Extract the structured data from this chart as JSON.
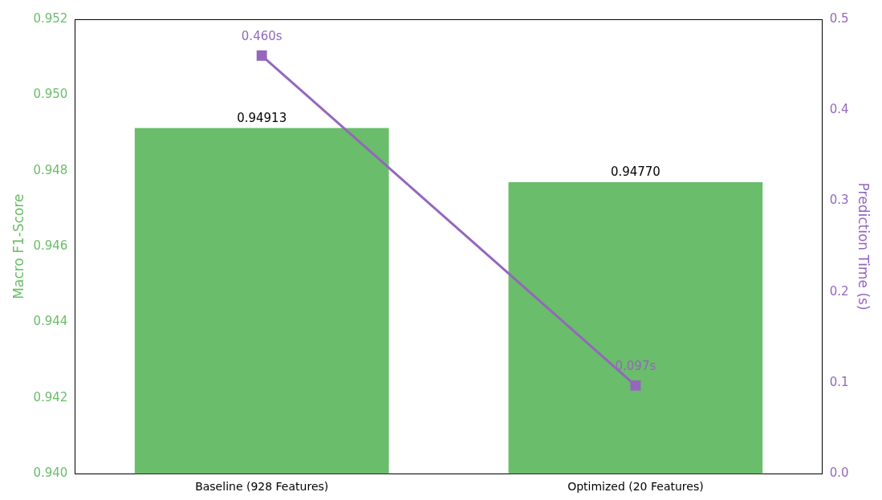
{
  "chart_data": {
    "type": "bar",
    "ylabel": "Macro F1-Score",
    "y2label": "Prediction Time (s)",
    "categories": [
      "Baseline (928 Features)",
      "Optimized (20 Features)"
    ],
    "series": [
      {
        "color": "#6abd6a",
        "values": [
          0.94913,
          0.9477
        ],
        "value_labels": [
          "0.94913",
          "0.94770"
        ]
      },
      {
        "type": "line",
        "axis": "y2",
        "color": "#9467bd",
        "marker": "square",
        "values": [
          0.46,
          0.097
        ],
        "value_labels": [
          "0.460s",
          "0.097s"
        ]
      }
    ],
    "ylim": [
      0.94,
      0.952
    ],
    "yticks": [
      {
        "value": 0.94,
        "label": "0.940"
      },
      {
        "value": 0.942,
        "label": "0.942"
      },
      {
        "value": 0.944,
        "label": "0.944"
      },
      {
        "value": 0.946,
        "label": "0.946"
      },
      {
        "value": 0.948,
        "label": "0.948"
      },
      {
        "value": 0.95,
        "label": "0.950"
      },
      {
        "value": 0.952,
        "label": "0.952"
      }
    ],
    "y2lim": [
      0,
      0.5
    ],
    "y2ticks": [
      {
        "value": 0,
        "label": "0.0"
      },
      {
        "value": 0.1,
        "label": "0.1"
      },
      {
        "value": 0.2,
        "label": "0.2"
      },
      {
        "value": 0.3,
        "label": "0.3"
      },
      {
        "value": 0.4,
        "label": "0.4"
      },
      {
        "value": 0.5,
        "label": "0.5"
      }
    ],
    "grid": false,
    "legend": false
  }
}
